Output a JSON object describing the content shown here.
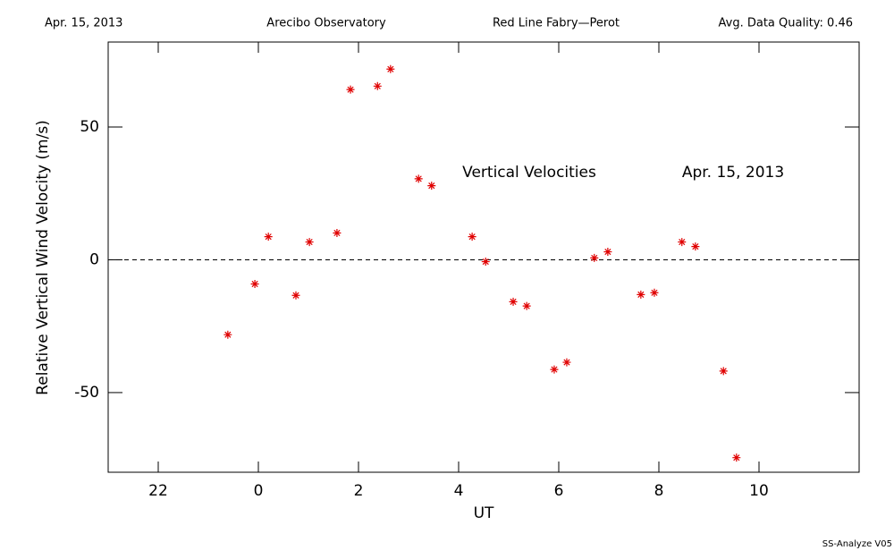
{
  "header": [
    "Apr. 15, 2013",
    "Arecibo Observatory",
    "Red Line Fabry—Perot",
    "Avg. Data Quality: 0.46"
  ],
  "footer": "SS-Analyze V05",
  "chart_data": {
    "type": "scatter",
    "xlabel": "UT",
    "ylabel": "Relative Vertical Wind Velocity (m/s)",
    "annotations": [
      "Vertical Velocities",
      "Apr. 15, 2013"
    ],
    "xlim": [
      -3,
      12
    ],
    "ylim": [
      -80,
      82
    ],
    "xticks": [
      {
        "value": -2,
        "label": "22"
      },
      0,
      2,
      4,
      6,
      8,
      10
    ],
    "yticks": [
      -50,
      0,
      50
    ],
    "zero_line": 0,
    "series": [
      {
        "name": "Vertical Velocities",
        "color": "#e00000",
        "x": [
          -0.61,
          -0.07,
          0.2,
          0.75,
          1.02,
          1.57,
          1.84,
          2.38,
          2.64,
          3.2,
          3.46,
          4.27,
          4.54,
          5.09,
          5.36,
          5.91,
          6.16,
          6.71,
          6.98,
          7.64,
          7.91,
          8.46,
          8.73,
          9.29,
          9.55
        ],
        "values": [
          -28.2,
          -9.1,
          8.7,
          -13.4,
          6.7,
          10.1,
          64.1,
          65.4,
          71.8,
          30.5,
          27.9,
          8.7,
          -0.7,
          -15.8,
          -17.4,
          -41.3,
          -38.6,
          0.7,
          3.0,
          -13.1,
          -12.4,
          6.7,
          5.0,
          -41.9,
          -74.5
        ]
      }
    ]
  }
}
